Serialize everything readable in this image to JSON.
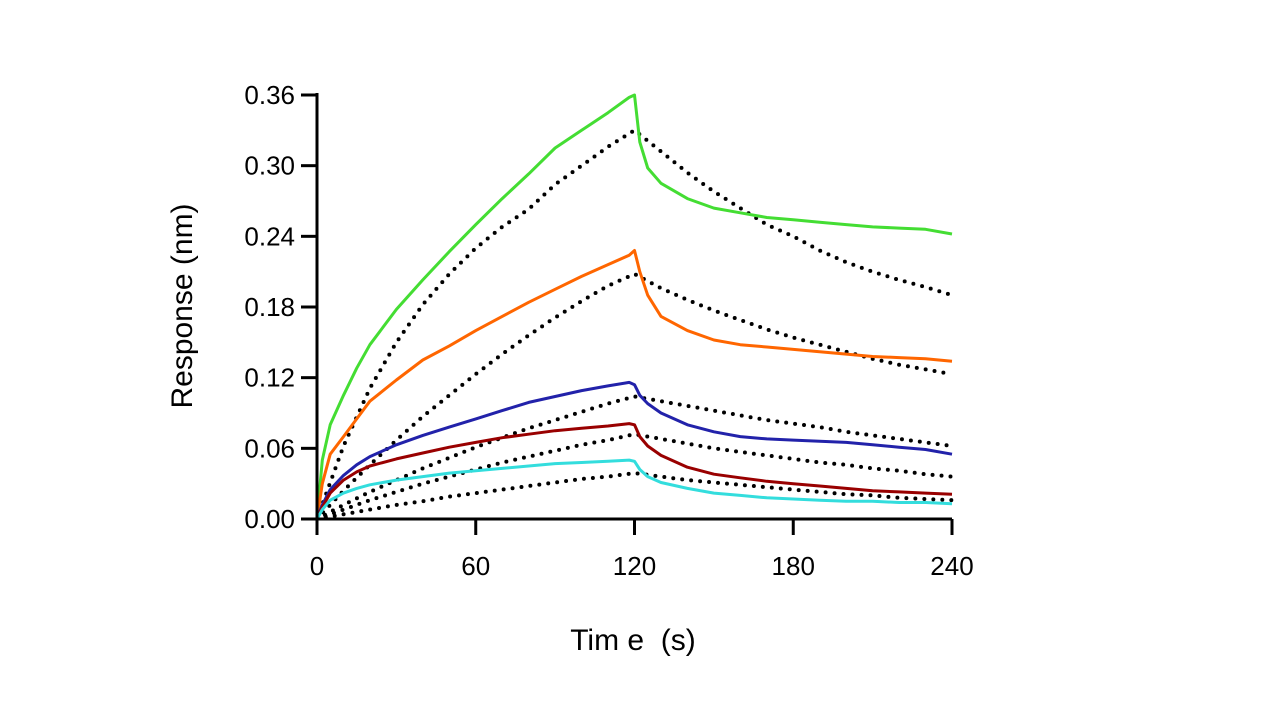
{
  "chart_data": {
    "type": "line",
    "title": "",
    "xlabel": "Tim e  (s)",
    "ylabel": "Response (nm)",
    "xlim": [
      0,
      240
    ],
    "ylim": [
      0,
      0.36
    ],
    "xticks": [
      0,
      60,
      120,
      180,
      240
    ],
    "xtick_labels": [
      "0",
      "60",
      "120",
      "180",
      "240"
    ],
    "yticks": [
      0,
      0.06,
      0.12,
      0.18,
      0.24,
      0.3,
      0.36
    ],
    "ytick_labels": [
      "0.00",
      "0.06",
      "0.12",
      "0.18",
      "0.24",
      "0.30",
      "0.36"
    ],
    "grid": false,
    "legend": "none",
    "series": [
      {
        "color": "#44dd33",
        "style": "solid",
        "x": [
          0,
          2,
          5,
          10,
          15,
          20,
          30,
          40,
          50,
          60,
          70,
          80,
          90,
          100,
          110,
          118,
          120,
          122,
          125,
          130,
          140,
          150,
          160,
          170,
          180,
          190,
          200,
          210,
          220,
          230,
          240
        ],
        "y": [
          0,
          0.05,
          0.08,
          0.105,
          0.128,
          0.148,
          0.178,
          0.203,
          0.227,
          0.25,
          0.272,
          0.293,
          0.315,
          0.33,
          0.345,
          0.358,
          0.36,
          0.32,
          0.298,
          0.285,
          0.272,
          0.264,
          0.26,
          0.256,
          0.254,
          0.252,
          0.25,
          0.248,
          0.247,
          0.246,
          0.242
        ]
      },
      {
        "color": "#ff6600",
        "style": "solid",
        "x": [
          0,
          2,
          5,
          10,
          15,
          20,
          30,
          40,
          50,
          60,
          70,
          80,
          90,
          100,
          110,
          118,
          120,
          122,
          125,
          130,
          140,
          150,
          160,
          170,
          180,
          190,
          200,
          210,
          220,
          230,
          240
        ],
        "y": [
          0,
          0.03,
          0.055,
          0.07,
          0.085,
          0.1,
          0.118,
          0.135,
          0.147,
          0.16,
          0.172,
          0.184,
          0.195,
          0.206,
          0.216,
          0.224,
          0.228,
          0.21,
          0.19,
          0.172,
          0.16,
          0.152,
          0.148,
          0.146,
          0.144,
          0.142,
          0.14,
          0.138,
          0.137,
          0.136,
          0.134
        ]
      },
      {
        "color": "#2222aa",
        "style": "solid",
        "x": [
          0,
          2,
          5,
          10,
          15,
          20,
          30,
          40,
          50,
          60,
          70,
          80,
          90,
          100,
          110,
          118,
          120,
          122,
          125,
          130,
          140,
          150,
          160,
          170,
          180,
          190,
          200,
          210,
          220,
          230,
          240
        ],
        "y": [
          0,
          0.012,
          0.025,
          0.037,
          0.046,
          0.053,
          0.063,
          0.071,
          0.078,
          0.085,
          0.092,
          0.099,
          0.104,
          0.109,
          0.113,
          0.116,
          0.114,
          0.105,
          0.098,
          0.09,
          0.08,
          0.074,
          0.07,
          0.068,
          0.067,
          0.066,
          0.065,
          0.063,
          0.061,
          0.059,
          0.055
        ]
      },
      {
        "color": "#990000",
        "style": "solid",
        "x": [
          0,
          2,
          5,
          10,
          15,
          20,
          30,
          40,
          50,
          60,
          70,
          80,
          90,
          100,
          110,
          118,
          120,
          122,
          125,
          130,
          140,
          150,
          160,
          170,
          180,
          190,
          200,
          210,
          220,
          230,
          240
        ],
        "y": [
          0,
          0.01,
          0.022,
          0.033,
          0.04,
          0.045,
          0.051,
          0.056,
          0.061,
          0.065,
          0.069,
          0.072,
          0.075,
          0.077,
          0.079,
          0.081,
          0.08,
          0.07,
          0.062,
          0.054,
          0.044,
          0.038,
          0.035,
          0.032,
          0.03,
          0.028,
          0.026,
          0.024,
          0.023,
          0.022,
          0.021
        ]
      },
      {
        "color": "#33dddd",
        "style": "solid",
        "x": [
          0,
          2,
          5,
          10,
          15,
          20,
          30,
          40,
          50,
          60,
          70,
          80,
          90,
          100,
          110,
          118,
          120,
          122,
          125,
          130,
          140,
          150,
          160,
          170,
          180,
          190,
          200,
          210,
          220,
          230,
          240
        ],
        "y": [
          0,
          0.008,
          0.016,
          0.022,
          0.026,
          0.029,
          0.033,
          0.036,
          0.039,
          0.041,
          0.043,
          0.045,
          0.047,
          0.048,
          0.049,
          0.05,
          0.049,
          0.042,
          0.036,
          0.031,
          0.026,
          0.022,
          0.02,
          0.018,
          0.017,
          0.016,
          0.015,
          0.015,
          0.014,
          0.014,
          0.013
        ]
      },
      {
        "color": "#000000",
        "style": "dotted",
        "x": [
          0,
          10,
          20,
          30,
          40,
          50,
          60,
          70,
          80,
          90,
          100,
          110,
          120,
          130,
          140,
          150,
          160,
          170,
          180,
          190,
          200,
          210,
          220,
          230,
          240
        ],
        "y": [
          0,
          0.062,
          0.111,
          0.15,
          0.182,
          0.208,
          0.23,
          0.248,
          0.263,
          0.284,
          0.3,
          0.316,
          0.33,
          0.312,
          0.294,
          0.278,
          0.264,
          0.25,
          0.24,
          0.228,
          0.218,
          0.21,
          0.203,
          0.197,
          0.19
        ]
      },
      {
        "color": "#000000",
        "style": "dotted",
        "x": [
          0,
          10,
          20,
          30,
          40,
          50,
          60,
          70,
          80,
          90,
          100,
          110,
          120,
          130,
          140,
          150,
          160,
          170,
          180,
          190,
          200,
          210,
          220,
          230,
          240
        ],
        "y": [
          0,
          0.024,
          0.046,
          0.067,
          0.087,
          0.105,
          0.123,
          0.14,
          0.156,
          0.171,
          0.185,
          0.198,
          0.208,
          0.196,
          0.186,
          0.177,
          0.169,
          0.161,
          0.154,
          0.148,
          0.142,
          0.136,
          0.131,
          0.127,
          0.123
        ]
      },
      {
        "color": "#000000",
        "style": "dotted",
        "x": [
          0,
          10,
          20,
          30,
          40,
          50,
          60,
          70,
          80,
          90,
          100,
          110,
          120,
          130,
          140,
          150,
          160,
          170,
          180,
          190,
          200,
          210,
          220,
          230,
          240
        ],
        "y": [
          0,
          0.012,
          0.023,
          0.033,
          0.043,
          0.052,
          0.061,
          0.069,
          0.077,
          0.084,
          0.091,
          0.098,
          0.104,
          0.1,
          0.096,
          0.092,
          0.088,
          0.084,
          0.081,
          0.078,
          0.074,
          0.071,
          0.068,
          0.065,
          0.062
        ]
      },
      {
        "color": "#000000",
        "style": "dotted",
        "x": [
          0,
          10,
          20,
          30,
          40,
          50,
          60,
          70,
          80,
          90,
          100,
          110,
          120,
          130,
          140,
          150,
          160,
          170,
          180,
          190,
          200,
          210,
          220,
          230,
          240
        ],
        "y": [
          0,
          0.008,
          0.016,
          0.023,
          0.03,
          0.036,
          0.042,
          0.048,
          0.053,
          0.058,
          0.063,
          0.067,
          0.072,
          0.068,
          0.064,
          0.06,
          0.057,
          0.054,
          0.051,
          0.048,
          0.046,
          0.043,
          0.041,
          0.038,
          0.036
        ]
      },
      {
        "color": "#000000",
        "style": "dotted",
        "x": [
          0,
          10,
          20,
          30,
          40,
          50,
          60,
          70,
          80,
          90,
          100,
          110,
          120,
          130,
          140,
          150,
          160,
          170,
          180,
          190,
          200,
          210,
          220,
          230,
          240
        ],
        "y": [
          0,
          0.004,
          0.008,
          0.012,
          0.015,
          0.019,
          0.022,
          0.025,
          0.028,
          0.031,
          0.034,
          0.036,
          0.039,
          0.036,
          0.033,
          0.031,
          0.029,
          0.027,
          0.025,
          0.023,
          0.021,
          0.02,
          0.018,
          0.017,
          0.016
        ]
      }
    ]
  }
}
